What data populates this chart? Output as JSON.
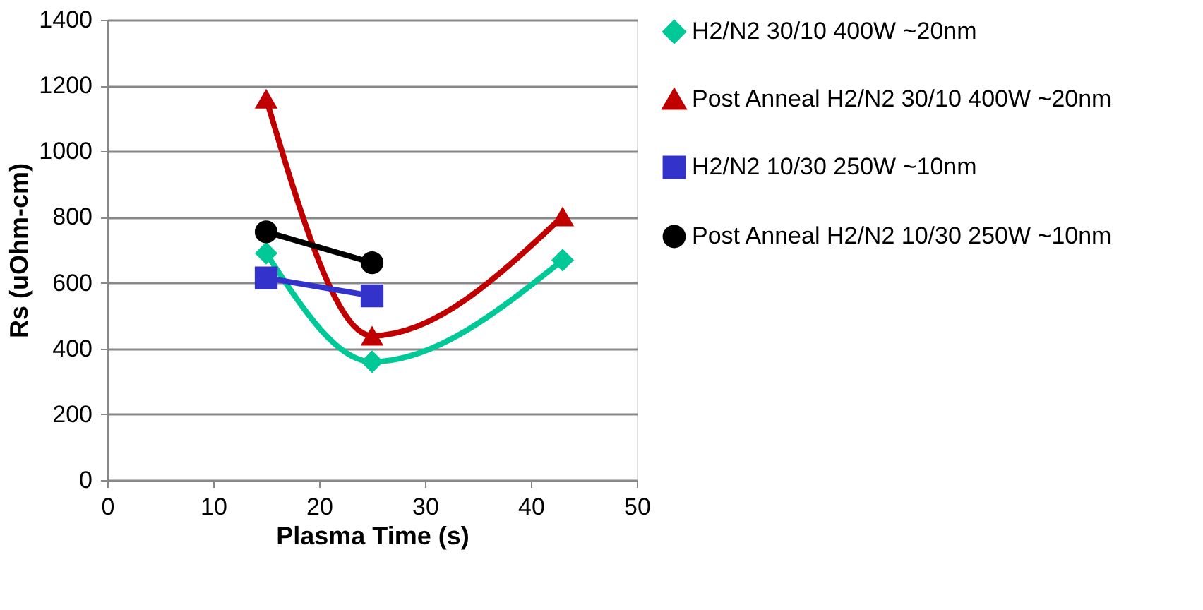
{
  "chart_data": {
    "type": "line",
    "xlabel": "Plasma Time (s)",
    "ylabel": "Rs (uOhm-cm)",
    "xlim": [
      0,
      50
    ],
    "xticks": [
      0,
      10,
      20,
      30,
      40,
      50
    ],
    "ylim": [
      0,
      1400
    ],
    "yticks": [
      0,
      200,
      400,
      600,
      800,
      1000,
      1200,
      1400
    ],
    "grid": "y",
    "legend": "right",
    "line_style": "solid",
    "series": [
      {
        "name": "H2/N2 30/10 400W ~20nm",
        "color": "#00c896",
        "marker": "diamond",
        "x": [
          15,
          25,
          43
        ],
        "values": [
          690,
          360,
          669
        ]
      },
      {
        "name": "Post Anneal H2/N2 30/10 400W ~20nm",
        "color": "#c00000",
        "marker": "triangle",
        "x": [
          15,
          25,
          43
        ],
        "values": [
          1160,
          439,
          802
        ]
      },
      {
        "name": "H2/N2 10/30 250W ~10nm",
        "color": "#3333cc",
        "marker": "square",
        "x": [
          15,
          25
        ],
        "values": [
          615,
          560
        ]
      },
      {
        "name": "Post Anneal H2/N2 10/30 250W ~10nm",
        "color": "#000000",
        "marker": "circle",
        "x": [
          15,
          25
        ],
        "values": [
          755,
          661
        ]
      }
    ]
  }
}
